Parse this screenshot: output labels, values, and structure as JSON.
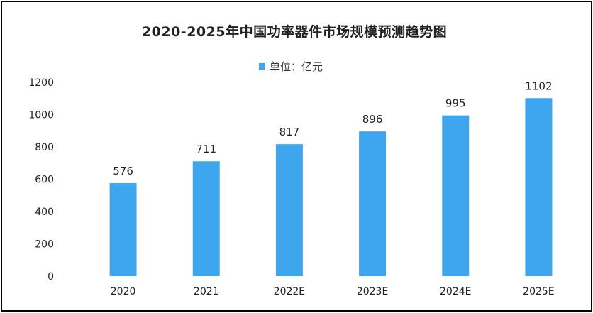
{
  "chart_data": {
    "type": "bar",
    "title": "2020-2025年中国功率器件市场规模预测趋势图",
    "legend": {
      "position": "top-center",
      "entries": [
        "单位：亿元"
      ]
    },
    "categories": [
      "2020",
      "2021",
      "2022E",
      "2023E",
      "2024E",
      "2025E"
    ],
    "series": [
      {
        "name": "单位：亿元",
        "values": [
          576,
          711,
          817,
          896,
          995,
          1102
        ],
        "color": "#3ea6ef"
      }
    ],
    "data_labels": [
      "576",
      "711",
      "817",
      "896",
      "995",
      "1102"
    ],
    "y_ticks": [
      "0",
      "200",
      "400",
      "600",
      "800",
      "1000",
      "1200"
    ],
    "ylim": [
      0,
      1200
    ],
    "grid": false,
    "xlabel": "",
    "ylabel": ""
  }
}
